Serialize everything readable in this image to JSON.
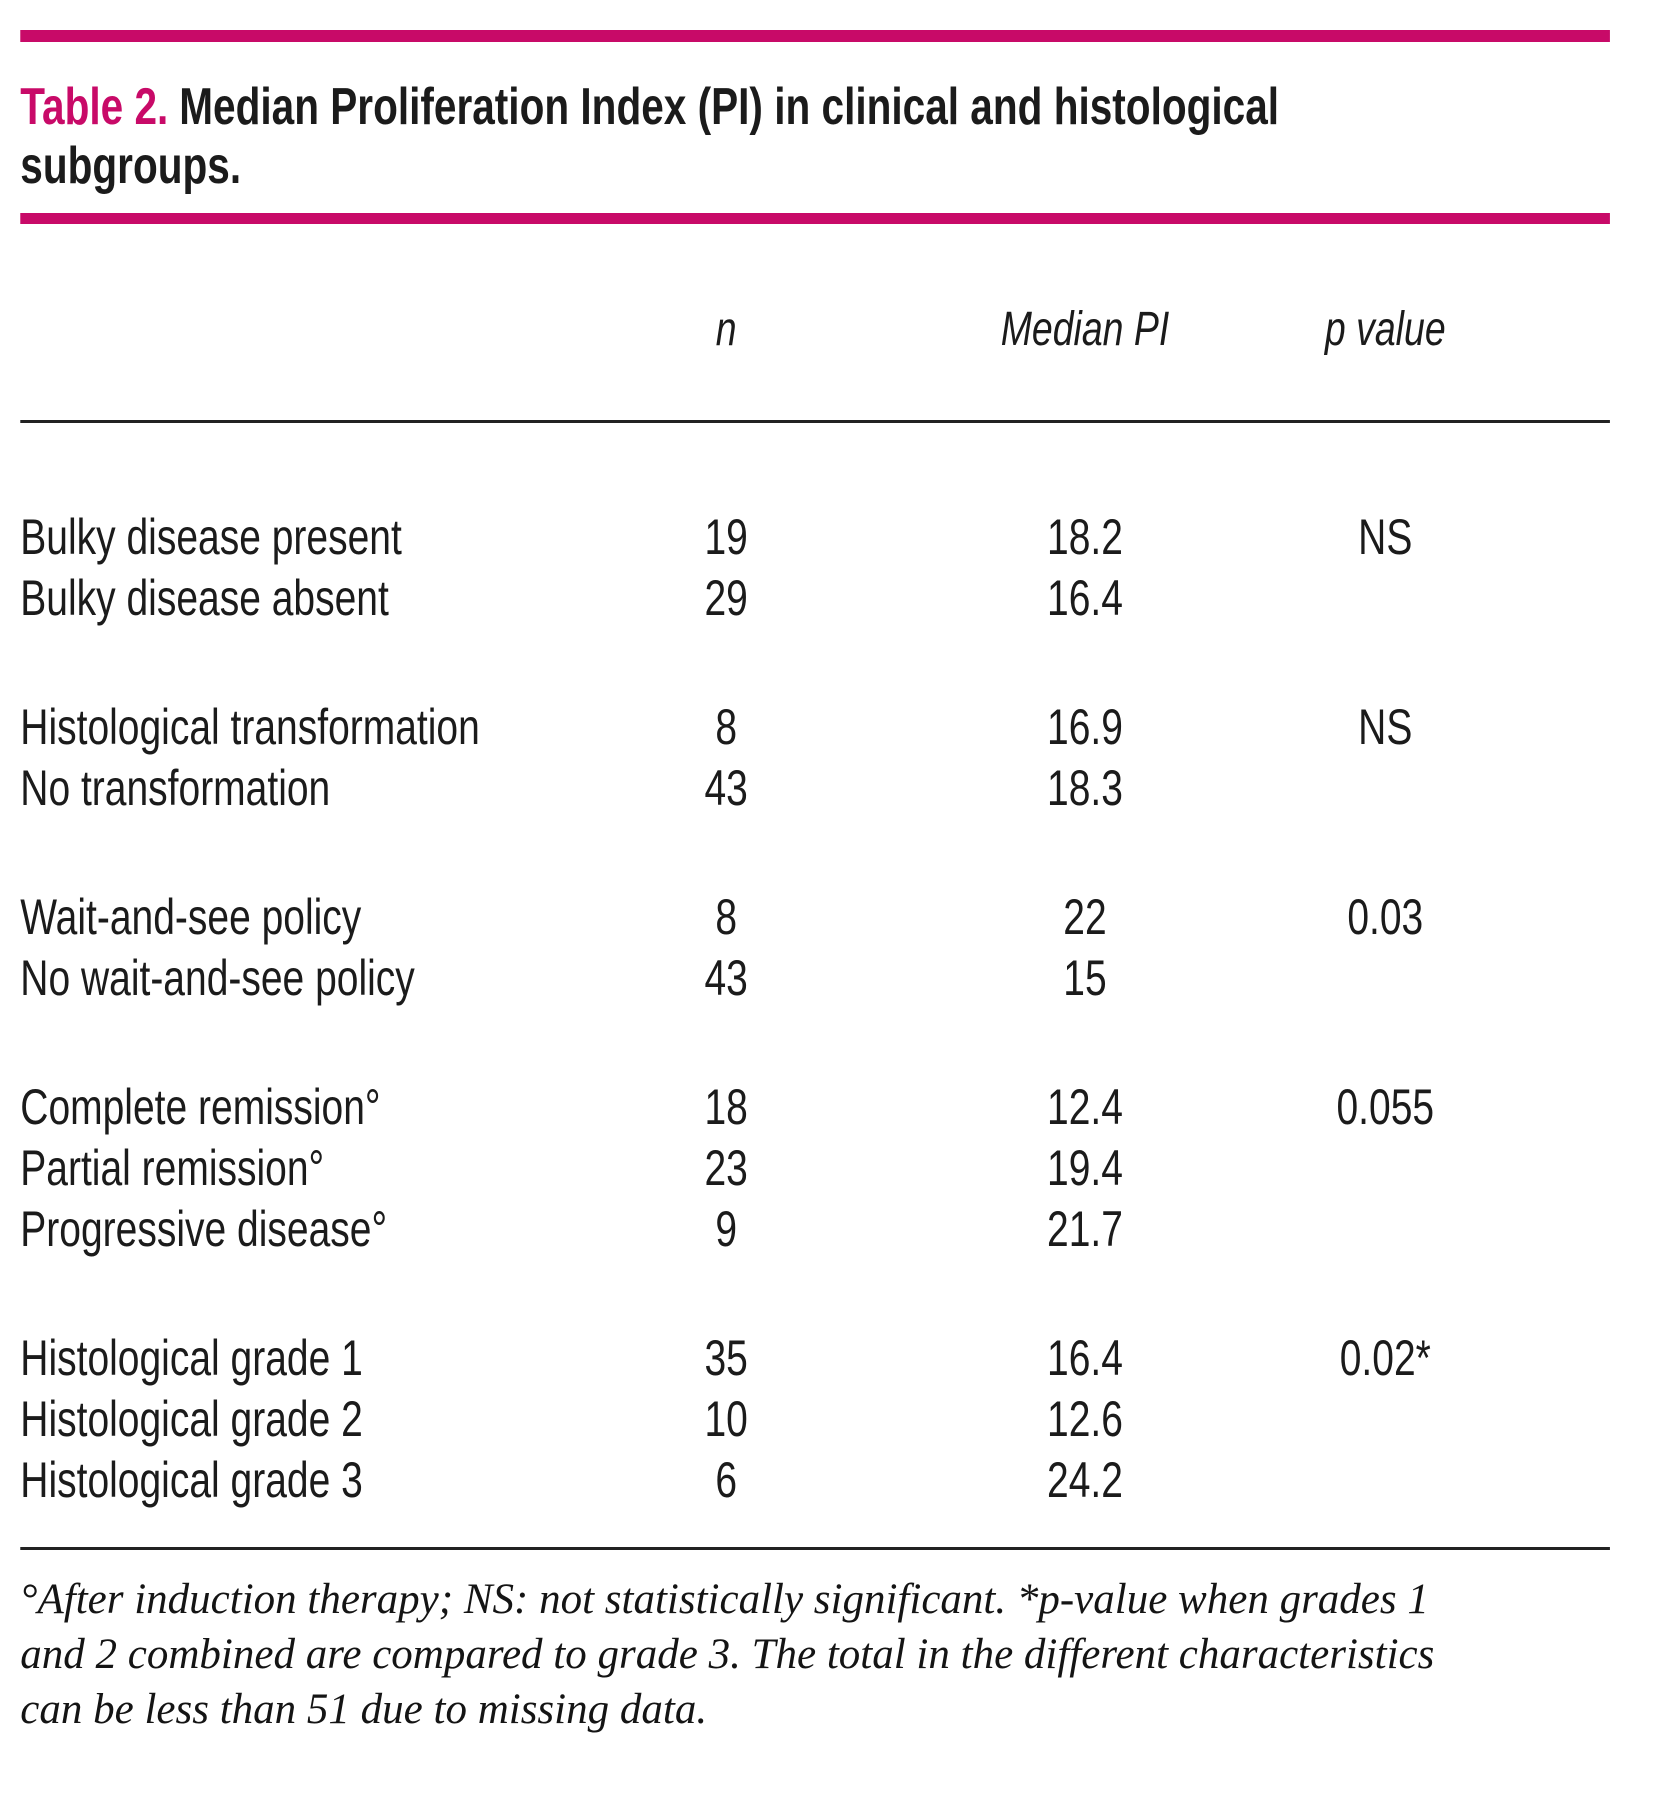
{
  "colors": {
    "accent": "#c80a68",
    "text": "#1b1b1b"
  },
  "title": {
    "label": "Table 2.",
    "line1": "Median Proliferation Index (PI) in clinical and histological",
    "line2": "subgroups."
  },
  "table": {
    "headers": {
      "n": "n",
      "median_pi": "Median PI",
      "p_value": "p value"
    },
    "groups": [
      {
        "rows": [
          {
            "cells": [
              "Bulky disease present",
              "19",
              "18.2",
              "NS"
            ]
          },
          {
            "cells": [
              "Bulky disease absent",
              "29",
              "16.4",
              ""
            ]
          }
        ]
      },
      {
        "rows": [
          {
            "cells": [
              "Histological transformation",
              "8",
              "16.9",
              "NS"
            ]
          },
          {
            "cells": [
              "No transformation",
              "43",
              "18.3",
              ""
            ]
          }
        ]
      },
      {
        "rows": [
          {
            "cells": [
              "Wait-and-see policy",
              "8",
              "22",
              "0.03"
            ]
          },
          {
            "cells": [
              "No wait-and-see policy",
              "43",
              "15",
              ""
            ]
          }
        ]
      },
      {
        "rows": [
          {
            "cells": [
              "Complete remission°",
              "18",
              "12.4",
              "0.055"
            ]
          },
          {
            "cells": [
              "Partial remission°",
              "23",
              "19.4",
              ""
            ]
          },
          {
            "cells": [
              "Progressive disease°",
              "9",
              "21.7",
              ""
            ]
          }
        ]
      },
      {
        "rows": [
          {
            "cells": [
              "Histological grade 1",
              "35",
              "16.4",
              "0.02*"
            ]
          },
          {
            "cells": [
              "Histological grade 2",
              "10",
              "12.6",
              ""
            ]
          },
          {
            "cells": [
              "Histological grade 3",
              "6",
              "24.2",
              ""
            ]
          }
        ]
      }
    ]
  },
  "footnote": {
    "lines": [
      "°After induction therapy; NS: not statistically significant. *p-value when grades 1",
      "and 2 combined are compared to grade 3. The total in the different characteristics",
      "can be less than 51 due to missing data."
    ]
  }
}
